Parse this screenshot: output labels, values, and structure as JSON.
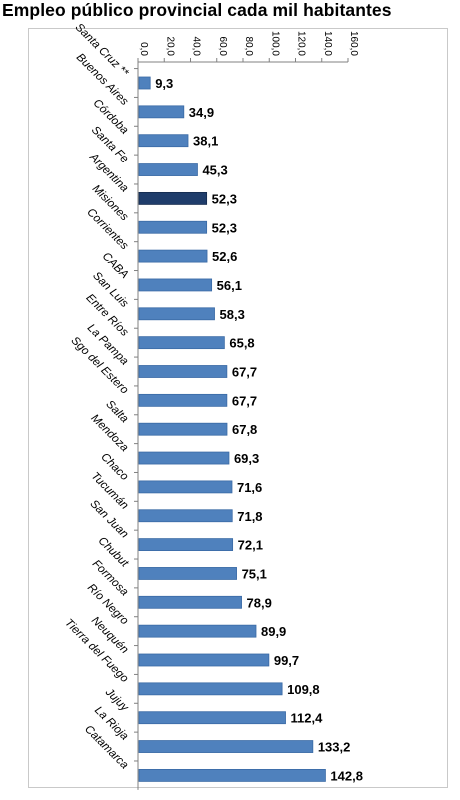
{
  "chart_data": {
    "type": "bar",
    "orientation": "horizontal",
    "title": "Empleo público provincial cada mil habitantes",
    "xlabel": "",
    "ylabel": "",
    "xlim": [
      0,
      160
    ],
    "ticks": [
      "0,0",
      "20,0",
      "40,0",
      "60,0",
      "80,0",
      "100,0",
      "120,0",
      "140,0",
      "160,0"
    ],
    "categories": [
      "Santa Cruz **",
      "Buenos Aires",
      "Córdoba",
      "Santa Fe",
      "Argentina",
      "Misiones",
      "Corrientes",
      "CABA",
      "San Luis",
      "Entre Ríos",
      "La Pampa",
      "Sgo del Estero",
      "Salta",
      "Mendoza",
      "Chaco",
      "Tucumán",
      "San Juan",
      "Chubut",
      "Formosa",
      "Río Negro",
      "Neuquén",
      "Tierra del Fuego",
      "Jujuy",
      "La Rioja",
      "Catamarca"
    ],
    "values": [
      9.3,
      34.9,
      38.1,
      45.3,
      52.3,
      52.3,
      52.6,
      56.1,
      58.3,
      65.8,
      67.7,
      67.7,
      67.8,
      69.3,
      71.6,
      71.8,
      72.1,
      75.1,
      78.9,
      89.9,
      99.7,
      109.8,
      112.4,
      133.2,
      142.8
    ],
    "value_labels": [
      "9,3",
      "34,9",
      "38,1",
      "45,3",
      "52,3",
      "52,3",
      "52,6",
      "56,1",
      "58,3",
      "65,8",
      "67,7",
      "67,7",
      "67,8",
      "69,3",
      "71,6",
      "71,8",
      "72,1",
      "75,1",
      "78,9",
      "89,9",
      "99,7",
      "109,8",
      "112,4",
      "133,2",
      "142,8"
    ],
    "highlight_index": 4,
    "colors": {
      "bar": "#4f81bd",
      "bar_edge": "#3a6aa5",
      "highlight": "#1f3d6b"
    },
    "grid": false,
    "legend": "none"
  }
}
